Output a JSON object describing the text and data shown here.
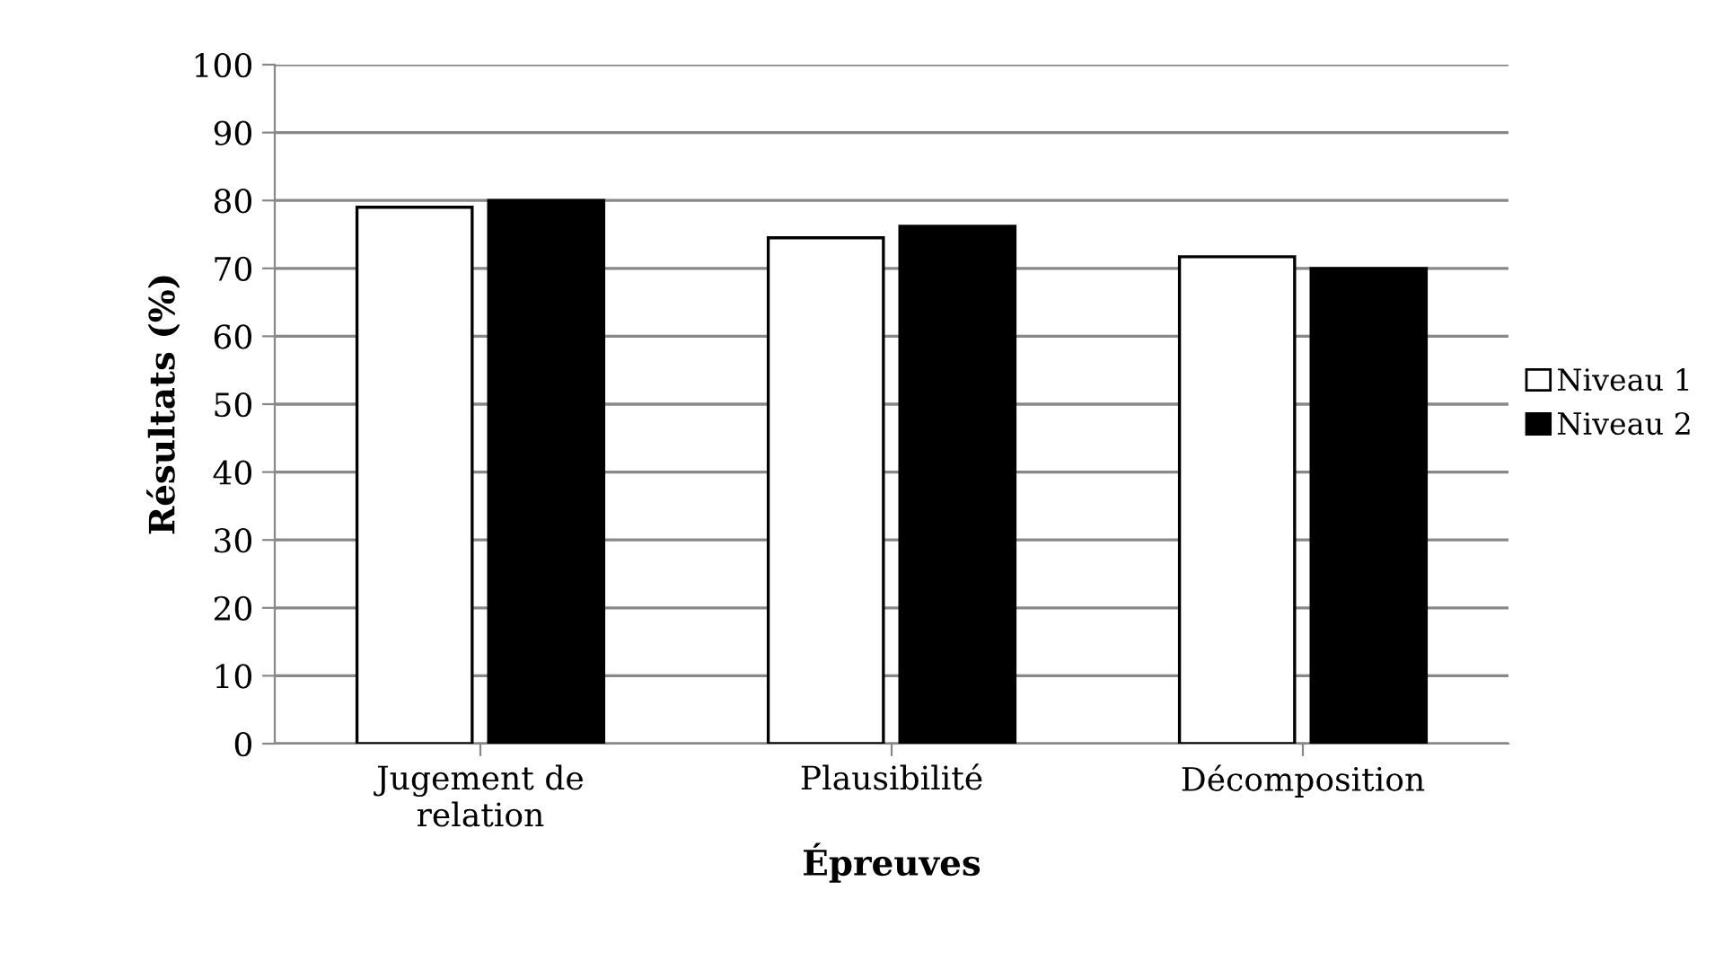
{
  "chart_data": {
    "type": "bar",
    "xlabel": "Épreuves",
    "ylabel": "Résultats (%)",
    "categories": [
      "Jugement de\nrelation",
      "Plausibilité",
      "Décomposition"
    ],
    "series": [
      {
        "name": "Niveau 1",
        "color": "#ffffff",
        "values": [
          79,
          74.5,
          71.7
        ]
      },
      {
        "name": "Niveau 2",
        "color": "#000000",
        "values": [
          80,
          76.2,
          70
        ]
      }
    ],
    "ylim": [
      0,
      100
    ],
    "yticks": [
      0,
      10,
      20,
      30,
      40,
      50,
      60,
      70,
      80,
      90,
      100
    ],
    "grid": "y",
    "legend": "right"
  }
}
